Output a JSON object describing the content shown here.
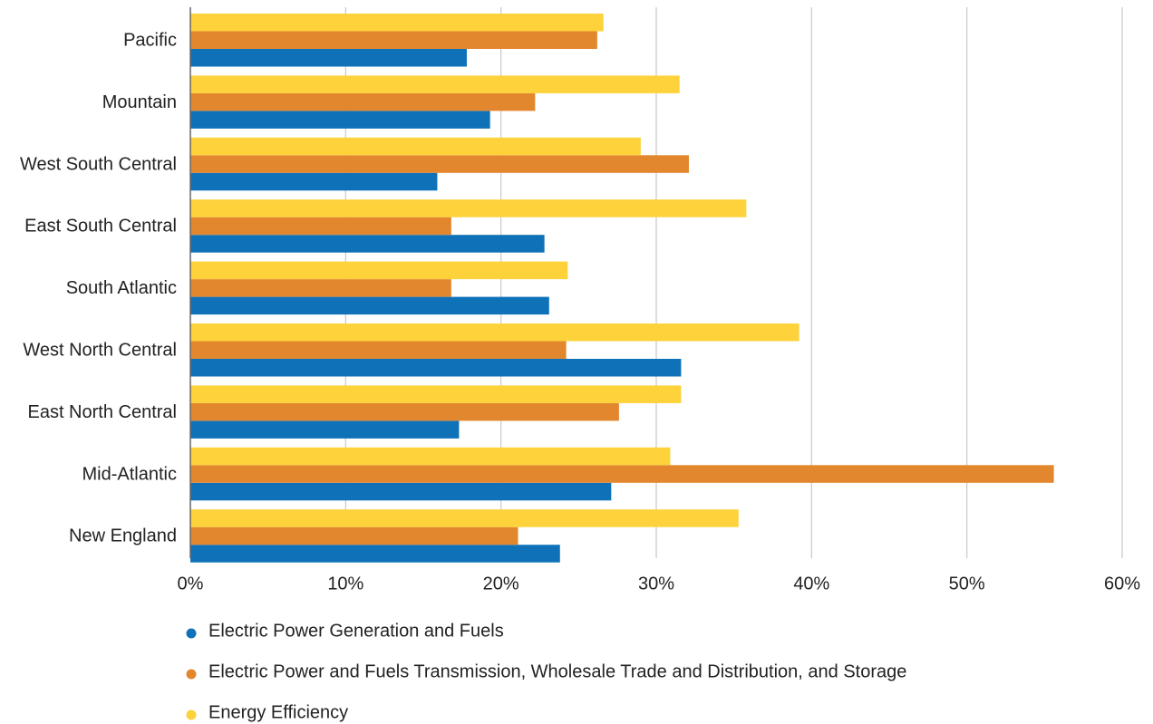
{
  "chart_data": {
    "type": "hbar",
    "categories": [
      "Pacific",
      "Mountain",
      "West South Central",
      "East South Central",
      "South Atlantic",
      "West North Central",
      "East North Central",
      "Mid-Atlantic",
      "New England"
    ],
    "series": [
      {
        "name": "Electric Power Generation and Fuels",
        "color": "#0f72b8",
        "values": [
          17.8,
          19.3,
          15.9,
          22.8,
          23.1,
          31.6,
          17.3,
          27.1,
          23.8
        ]
      },
      {
        "name": "Electric Power and Fuels Transmission, Wholesale Trade and Distribution, and Storage",
        "color": "#e3872f",
        "values": [
          26.2,
          22.2,
          32.1,
          16.8,
          16.8,
          24.2,
          27.6,
          55.6,
          21.1
        ]
      },
      {
        "name": "Energy Efficiency",
        "color": "#fdd23a",
        "values": [
          26.6,
          31.5,
          29.0,
          35.8,
          24.3,
          39.2,
          31.6,
          30.9,
          35.3
        ]
      }
    ],
    "xlim": [
      0,
      60
    ],
    "xticks": [
      {
        "value": 0,
        "label": "0%"
      },
      {
        "value": 10,
        "label": "10%"
      },
      {
        "value": 20,
        "label": "20%"
      },
      {
        "value": 30,
        "label": "30%"
      },
      {
        "value": 40,
        "label": "40%"
      },
      {
        "value": 50,
        "label": "50%"
      },
      {
        "value": 60,
        "label": "60%"
      }
    ],
    "grid": true
  }
}
